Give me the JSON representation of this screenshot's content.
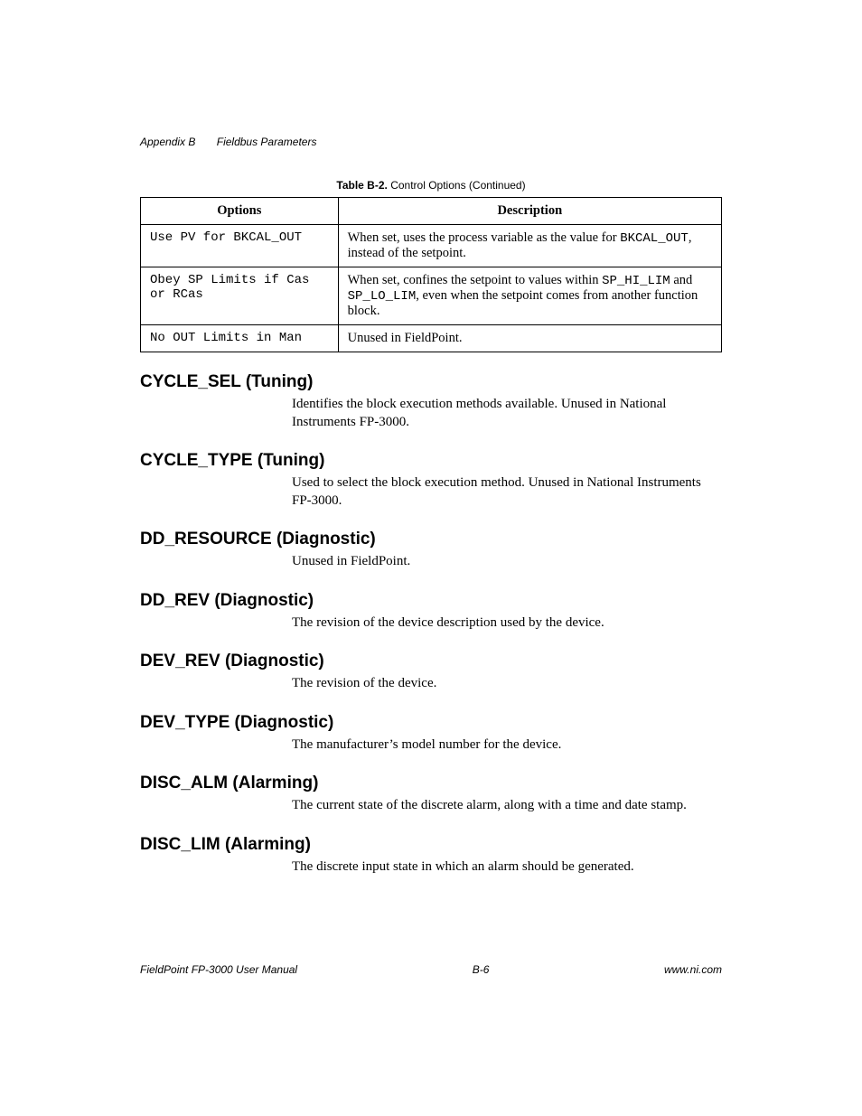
{
  "header": {
    "appendix": "Appendix B",
    "title": "Fieldbus Parameters"
  },
  "table": {
    "caption_bold": "Table B-2.",
    "caption_rest": "  Control Options (Continued)",
    "columns": [
      "Options",
      "Description"
    ],
    "rows": [
      {
        "option": "Use PV for BKCAL_OUT",
        "desc_pre": "When set, uses the process variable as the value for ",
        "desc_mono": "BKCAL_OUT",
        "desc_post": ", instead of the setpoint."
      },
      {
        "option": "Obey SP Limits if Cas or RCas",
        "desc_pre": "When set, confines the setpoint to values within ",
        "desc_mono": "SP_HI_LIM",
        "desc_mid": " and ",
        "desc_mono2": "SP_LO_LIM",
        "desc_post": ", even when the setpoint comes from another function block."
      },
      {
        "option": "No OUT Limits in Man",
        "desc_pre": "Unused in FieldPoint."
      }
    ]
  },
  "sections": [
    {
      "heading": "CYCLE_SEL (Tuning)",
      "body": "Identifies the block execution methods available. Unused in National Instruments FP-3000."
    },
    {
      "heading": "CYCLE_TYPE (Tuning)",
      "body": "Used to select the block execution method. Unused in National Instruments FP-3000."
    },
    {
      "heading": "DD_RESOURCE (Diagnostic)",
      "body": "Unused in FieldPoint."
    },
    {
      "heading": "DD_REV (Diagnostic)",
      "body": "The revision of the device description used by the device."
    },
    {
      "heading": "DEV_REV (Diagnostic)",
      "body": "The revision of the device."
    },
    {
      "heading": "DEV_TYPE (Diagnostic)",
      "body": "The manufacturer’s model number for the device."
    },
    {
      "heading": "DISC_ALM (Alarming)",
      "body": "The current state of the discrete alarm, along with a time and date stamp."
    },
    {
      "heading": "DISC_LIM (Alarming)",
      "body": "The discrete input state in which an alarm should be generated."
    }
  ],
  "footer": {
    "left": "FieldPoint FP-3000 User Manual",
    "center": "B-6",
    "right": "www.ni.com"
  }
}
